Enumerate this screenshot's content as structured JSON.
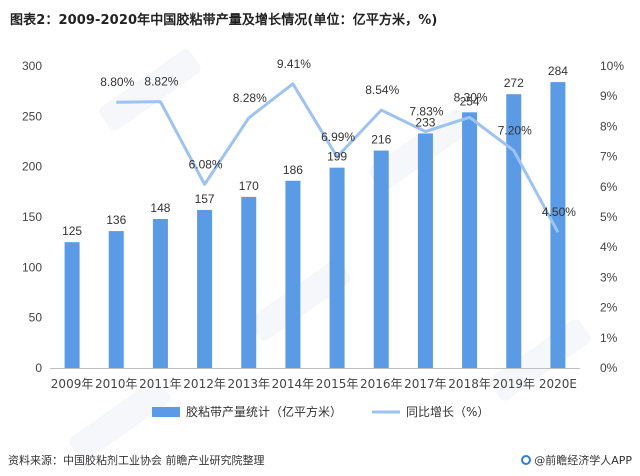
{
  "title": "图表2：2009-2020年中国胶粘带产量及增长情况(单位：亿平方米，%)",
  "source": "资料来源：中国胶粘剂工业协会 前瞻产业研究院整理",
  "brand": "@前瞻经济学人APP",
  "colors": {
    "bar": "#5b9be6",
    "line": "#9ec3f0",
    "axis_text": "#444444",
    "grid": "#e3e3e3"
  },
  "chart_data": {
    "type": "bar",
    "categories": [
      "2009年",
      "2010年",
      "2011年",
      "2012年",
      "2013年",
      "2014年",
      "2015年",
      "2016年",
      "2017年",
      "2018年",
      "2019年",
      "2020E"
    ],
    "series": [
      {
        "name": "胶粘带产量统计（亿平方米）",
        "type": "bar",
        "axis": "left",
        "values": [
          125,
          136,
          148,
          157,
          170,
          186,
          199,
          216,
          233,
          254,
          272,
          284
        ],
        "labels": [
          "125",
          "136",
          "148",
          "157",
          "170",
          "186",
          "199",
          "216",
          "233",
          "254",
          "272",
          "284"
        ]
      },
      {
        "name": "同比增长（%）",
        "type": "line",
        "axis": "right",
        "values": [
          null,
          8.8,
          8.82,
          6.08,
          8.28,
          9.41,
          6.99,
          8.54,
          7.83,
          8.3,
          7.2,
          4.5
        ],
        "labels": [
          "",
          "8.80%",
          "8.82%",
          "6.08%",
          "8.28%",
          "9.41%",
          "6.99%",
          "8.54%",
          "7.83%",
          "8.30%",
          "7.20%",
          "4.50%"
        ]
      }
    ],
    "y_left": {
      "min": 0,
      "max": 300,
      "ticks": [
        "0",
        "50",
        "100",
        "150",
        "200",
        "250",
        "300"
      ]
    },
    "y_right": {
      "min": 0,
      "max": 10,
      "ticks": [
        "0%",
        "1%",
        "2%",
        "3%",
        "4%",
        "5%",
        "6%",
        "7%",
        "8%",
        "9%",
        "10%"
      ]
    },
    "legend_position": "bottom",
    "grid": false
  }
}
